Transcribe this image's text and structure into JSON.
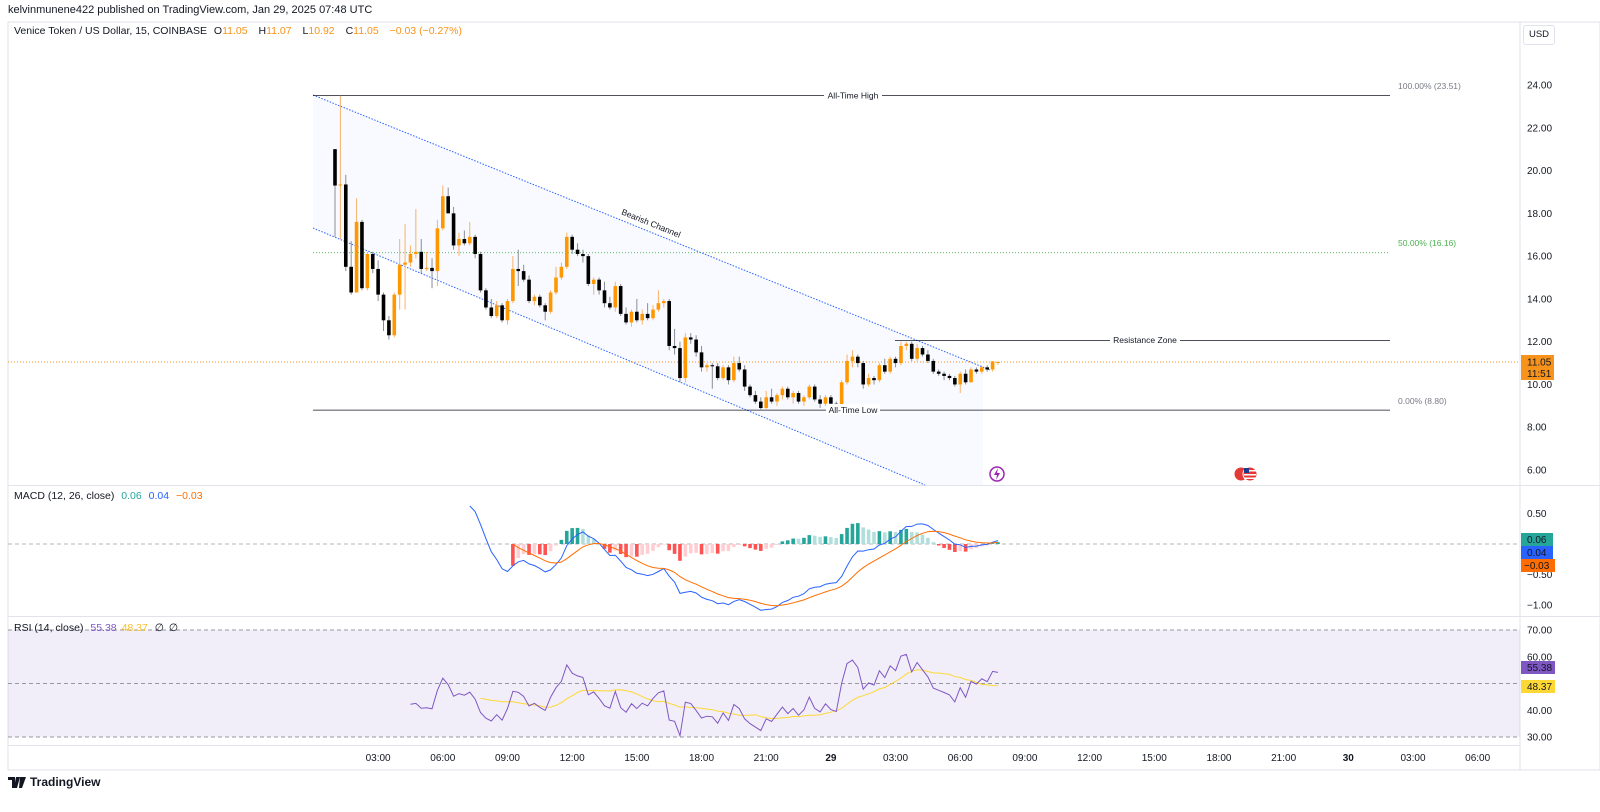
{
  "header": {
    "published": "kelvinmunene422 published on TradingView.com, Jan 29, 2025 07:48 UTC",
    "symbol": "Venice Token / US Dollar, 15, COINBASE",
    "o_label": "O",
    "o": "11.05",
    "h_label": "H",
    "h": "11.07",
    "l_label": "L",
    "l": "10.92",
    "c_label": "C",
    "c": "11.05",
    "change": "−0.03 (−0.27%)"
  },
  "currency_button": "USD",
  "price_badge": {
    "price": "11.05",
    "countdown": "11:51",
    "color": "#f7931a"
  },
  "macd_legend": {
    "title": "MACD (12, 26, close)",
    "hist": "0.06",
    "macd": "0.04",
    "signal": "−0.03"
  },
  "macd_badges": {
    "hist": "0.06",
    "macd": "0.04",
    "signal": "−0.03"
  },
  "rsi_legend": {
    "title": "RSI (14, close)",
    "rsi": "55.38",
    "ma": "48.37",
    "extra1": "∅",
    "extra2": "∅"
  },
  "rsi_badges": {
    "rsi": "55.38",
    "ma": "48.37"
  },
  "drawings": {
    "ath_label": "All-Time High",
    "atl_label": "All-Time Low",
    "resistance_label": "Resistance Zone",
    "channel_label": "Bearish Channel",
    "fib_100": "100.00% (23.51)",
    "fib_50": "50.00% (16.16)",
    "fib_0": "0.00% (8.80)"
  },
  "footer": {
    "logo_text": "TradingView"
  },
  "colors": {
    "up": "#ff9800",
    "down": "#000000",
    "macd": "#2962ff",
    "signal": "#ff6d00",
    "hist_up": "#26a69a",
    "hist_up_light": "#b2dfdb",
    "hist_down": "#ff5252",
    "hist_down_light": "#ffcdd2",
    "rsi": "#7e57c2",
    "rsi_ma": "#fdd835",
    "fib_50": "#4caf50",
    "channel": "#2962ff"
  },
  "icons": [
    "lightning-event-icon",
    "us-flag-event-icon",
    "tradingview-logo-icon"
  ],
  "chart_data": {
    "type": "candlestick",
    "symbol": "Venice Token / US Dollar",
    "interval_min": 15,
    "start": "2025-01-28T01:00",
    "candles_ohlc": [
      [
        21.0,
        21.0,
        16.9,
        19.3
      ],
      [
        19.3,
        23.5,
        16.8,
        19.35
      ],
      [
        19.35,
        19.8,
        15.3,
        15.5
      ],
      [
        15.5,
        16.7,
        14.2,
        14.3
      ],
      [
        14.3,
        18.7,
        14.3,
        17.6
      ],
      [
        17.6,
        17.7,
        14.4,
        14.5
      ],
      [
        14.5,
        16.2,
        14.4,
        16.1
      ],
      [
        16.1,
        16.2,
        15.2,
        15.4
      ],
      [
        15.4,
        15.8,
        13.9,
        14.2
      ],
      [
        14.2,
        14.3,
        12.5,
        13.0
      ],
      [
        13.0,
        13.2,
        12.1,
        12.3
      ],
      [
        12.3,
        14.3,
        12.2,
        14.2
      ],
      [
        14.2,
        16.8,
        13.5,
        15.6
      ],
      [
        15.6,
        17.5,
        13.5,
        15.7
      ],
      [
        15.7,
        16.5,
        15.5,
        16.1
      ],
      [
        16.1,
        18.2,
        15.9,
        16.2
      ],
      [
        16.2,
        16.8,
        15.2,
        15.4
      ],
      [
        15.4,
        16.2,
        15.3,
        15.45
      ],
      [
        15.45,
        15.9,
        14.5,
        15.3
      ],
      [
        15.3,
        17.7,
        14.6,
        17.3
      ],
      [
        17.3,
        19.3,
        17.2,
        18.8
      ],
      [
        18.8,
        19.2,
        18.0,
        18.0
      ],
      [
        18.0,
        18.3,
        16.3,
        16.5
      ],
      [
        16.5,
        17.1,
        16.0,
        16.8
      ],
      [
        16.8,
        17.2,
        16.5,
        16.6
      ],
      [
        16.6,
        17.6,
        16.5,
        16.9
      ],
      [
        16.9,
        17.0,
        15.9,
        16.1
      ],
      [
        16.1,
        16.2,
        14.3,
        14.4
      ],
      [
        14.4,
        14.5,
        13.5,
        13.6
      ],
      [
        13.6,
        14.0,
        13.1,
        13.2
      ],
      [
        13.2,
        13.9,
        13.1,
        13.7
      ],
      [
        13.7,
        13.8,
        12.9,
        13.0
      ],
      [
        13.0,
        14.0,
        12.8,
        13.9
      ],
      [
        13.9,
        16.0,
        13.8,
        15.4
      ],
      [
        15.4,
        16.3,
        14.6,
        15.3
      ],
      [
        15.3,
        15.6,
        14.8,
        14.9
      ],
      [
        14.9,
        15.1,
        13.8,
        13.9
      ],
      [
        13.9,
        14.2,
        13.7,
        14.1
      ],
      [
        14.1,
        14.2,
        13.6,
        13.7
      ],
      [
        13.7,
        13.8,
        13.0,
        13.4
      ],
      [
        13.4,
        14.4,
        13.3,
        14.3
      ],
      [
        14.3,
        15.5,
        14.2,
        15.0
      ],
      [
        15.0,
        15.7,
        14.9,
        15.5
      ],
      [
        15.5,
        17.1,
        15.4,
        16.9
      ],
      [
        16.9,
        17.0,
        16.1,
        16.3
      ],
      [
        16.3,
        16.6,
        16.0,
        16.1
      ],
      [
        16.1,
        16.3,
        15.7,
        16.0
      ],
      [
        16.0,
        16.1,
        14.6,
        14.7
      ],
      [
        14.7,
        15.0,
        14.2,
        14.9
      ],
      [
        14.9,
        15.0,
        14.2,
        14.4
      ],
      [
        14.4,
        14.8,
        13.6,
        13.8
      ],
      [
        13.8,
        14.1,
        13.5,
        13.6
      ],
      [
        13.6,
        14.8,
        13.4,
        14.6
      ],
      [
        14.6,
        14.7,
        13.2,
        13.3
      ],
      [
        13.3,
        13.6,
        12.8,
        12.9
      ],
      [
        12.9,
        13.5,
        12.7,
        13.4
      ],
      [
        13.4,
        14.0,
        12.9,
        13.0
      ],
      [
        13.0,
        13.5,
        12.8,
        13.3
      ],
      [
        13.3,
        13.8,
        13.0,
        13.1
      ],
      [
        13.1,
        13.7,
        13.0,
        13.5
      ],
      [
        13.5,
        14.4,
        13.4,
        13.8
      ],
      [
        13.8,
        14.0,
        13.6,
        13.9
      ],
      [
        13.9,
        14.0,
        11.6,
        11.8
      ],
      [
        11.8,
        12.6,
        11.4,
        11.7
      ],
      [
        11.7,
        12.0,
        10.1,
        10.3
      ],
      [
        10.3,
        12.4,
        10.1,
        12.2
      ],
      [
        12.2,
        12.4,
        11.9,
        12.1
      ],
      [
        12.1,
        12.3,
        11.3,
        11.5
      ],
      [
        11.5,
        11.8,
        10.6,
        10.8
      ],
      [
        10.8,
        11.0,
        10.6,
        10.9
      ],
      [
        10.9,
        11.0,
        9.8,
        10.85
      ],
      [
        10.85,
        11.0,
        10.2,
        10.3
      ],
      [
        10.3,
        10.9,
        10.2,
        10.8
      ],
      [
        10.8,
        10.9,
        10.0,
        10.2
      ],
      [
        10.2,
        11.3,
        10.1,
        11.0
      ],
      [
        11.0,
        11.3,
        10.6,
        10.7
      ],
      [
        10.7,
        10.9,
        9.7,
        9.9
      ],
      [
        9.9,
        10.0,
        9.4,
        9.5
      ],
      [
        9.5,
        9.7,
        9.1,
        9.2
      ],
      [
        9.2,
        9.4,
        8.8,
        8.9
      ],
      [
        8.9,
        9.7,
        8.85,
        9.4
      ],
      [
        9.4,
        9.8,
        9.1,
        9.2
      ],
      [
        9.2,
        9.6,
        9.0,
        9.5
      ],
      [
        9.5,
        9.9,
        9.3,
        9.8
      ],
      [
        9.8,
        9.9,
        9.3,
        9.4
      ],
      [
        9.4,
        9.7,
        9.1,
        9.6
      ],
      [
        9.6,
        9.7,
        9.1,
        9.2
      ],
      [
        9.2,
        9.5,
        9.0,
        9.4
      ],
      [
        9.4,
        10.0,
        9.3,
        9.9
      ],
      [
        9.9,
        10.0,
        9.2,
        9.3
      ],
      [
        9.3,
        9.5,
        8.9,
        9.1
      ],
      [
        9.1,
        9.5,
        9.0,
        9.4
      ],
      [
        9.4,
        9.5,
        9.0,
        9.1
      ],
      [
        9.1,
        9.2,
        8.8,
        9.0
      ],
      [
        9.0,
        10.2,
        8.95,
        10.1
      ],
      [
        10.1,
        11.4,
        10.0,
        11.1
      ],
      [
        11.1,
        11.6,
        10.8,
        11.3
      ],
      [
        11.3,
        11.4,
        10.8,
        11.0
      ],
      [
        11.0,
        11.1,
        9.8,
        10.0
      ],
      [
        10.0,
        10.5,
        9.9,
        10.3
      ],
      [
        10.3,
        10.4,
        10.0,
        10.2
      ],
      [
        10.2,
        11.0,
        10.1,
        10.9
      ],
      [
        10.9,
        11.2,
        10.5,
        10.6
      ],
      [
        10.6,
        11.3,
        10.5,
        11.2
      ],
      [
        11.2,
        11.3,
        10.8,
        11.0
      ],
      [
        11.0,
        12.0,
        10.9,
        11.8
      ],
      [
        11.8,
        12.0,
        11.6,
        11.9
      ],
      [
        11.9,
        12.0,
        11.1,
        11.2
      ],
      [
        11.2,
        11.9,
        11.1,
        11.7
      ],
      [
        11.7,
        11.8,
        11.3,
        11.4
      ],
      [
        11.4,
        11.6,
        11.0,
        11.1
      ],
      [
        11.1,
        11.2,
        10.5,
        10.6
      ],
      [
        10.6,
        10.7,
        10.4,
        10.5
      ],
      [
        10.5,
        10.6,
        10.2,
        10.4
      ],
      [
        10.4,
        10.5,
        10.2,
        10.3
      ],
      [
        10.3,
        10.4,
        9.9,
        10.0
      ],
      [
        10.0,
        10.6,
        9.6,
        10.5
      ],
      [
        10.5,
        10.7,
        10.0,
        10.1
      ],
      [
        10.1,
        10.8,
        10.1,
        10.7
      ],
      [
        10.7,
        10.8,
        10.5,
        10.6
      ],
      [
        10.6,
        10.9,
        10.5,
        10.8
      ],
      [
        10.8,
        10.9,
        10.6,
        10.7
      ],
      [
        10.7,
        11.1,
        10.6,
        11.08
      ],
      [
        11.05,
        11.07,
        10.92,
        11.05
      ]
    ],
    "levels": {
      "all_time_high": 23.51,
      "all_time_low": 8.8,
      "fib_50": 16.16,
      "resistance_zone": 12.05,
      "last_price": 11.05
    },
    "price_axis": {
      "ticks": [
        "24.00",
        "22.00",
        "20.00",
        "18.00",
        "16.00",
        "14.00",
        "12.00",
        "10.00",
        "8.00",
        "6.00"
      ],
      "range": [
        6,
        24
      ],
      "currency": "USD"
    },
    "macd": {
      "fast": 12,
      "slow": 26,
      "source": "close",
      "axis_ticks": [
        "0.50",
        "−0.50",
        "−1.00"
      ],
      "range": [
        -1.2,
        0.9
      ]
    },
    "rsi": {
      "length": 14,
      "source": "close",
      "ma_length": 14,
      "axis_ticks": [
        "70.00",
        "60.00",
        "40.00",
        "30.00"
      ],
      "bands": [
        70,
        50,
        30
      ]
    },
    "time_axis": [
      {
        "label": "03:00",
        "time": "2025-01-28T03:00"
      },
      {
        "label": "06:00",
        "time": "2025-01-28T06:00"
      },
      {
        "label": "09:00",
        "time": "2025-01-28T09:00"
      },
      {
        "label": "12:00",
        "time": "2025-01-28T12:00"
      },
      {
        "label": "15:00",
        "time": "2025-01-28T15:00"
      },
      {
        "label": "18:00",
        "time": "2025-01-28T18:00"
      },
      {
        "label": "21:00",
        "time": "2025-01-28T21:00"
      },
      {
        "label": "29",
        "time": "2025-01-29T00:00",
        "bold": true
      },
      {
        "label": "03:00",
        "time": "2025-01-29T03:00"
      },
      {
        "label": "06:00",
        "time": "2025-01-29T06:00"
      },
      {
        "label": "09:00",
        "time": "2025-01-29T09:00"
      },
      {
        "label": "12:00",
        "time": "2025-01-29T12:00"
      },
      {
        "label": "15:00",
        "time": "2025-01-29T15:00"
      },
      {
        "label": "18:00",
        "time": "2025-01-29T18:00"
      },
      {
        "label": "21:00",
        "time": "2025-01-29T21:00"
      },
      {
        "label": "30",
        "time": "2025-01-30T00:00",
        "bold": true
      },
      {
        "label": "03:00",
        "time": "2025-01-30T03:00"
      },
      {
        "label": "06:00",
        "time": "2025-01-30T06:00"
      }
    ],
    "grid": false
  }
}
